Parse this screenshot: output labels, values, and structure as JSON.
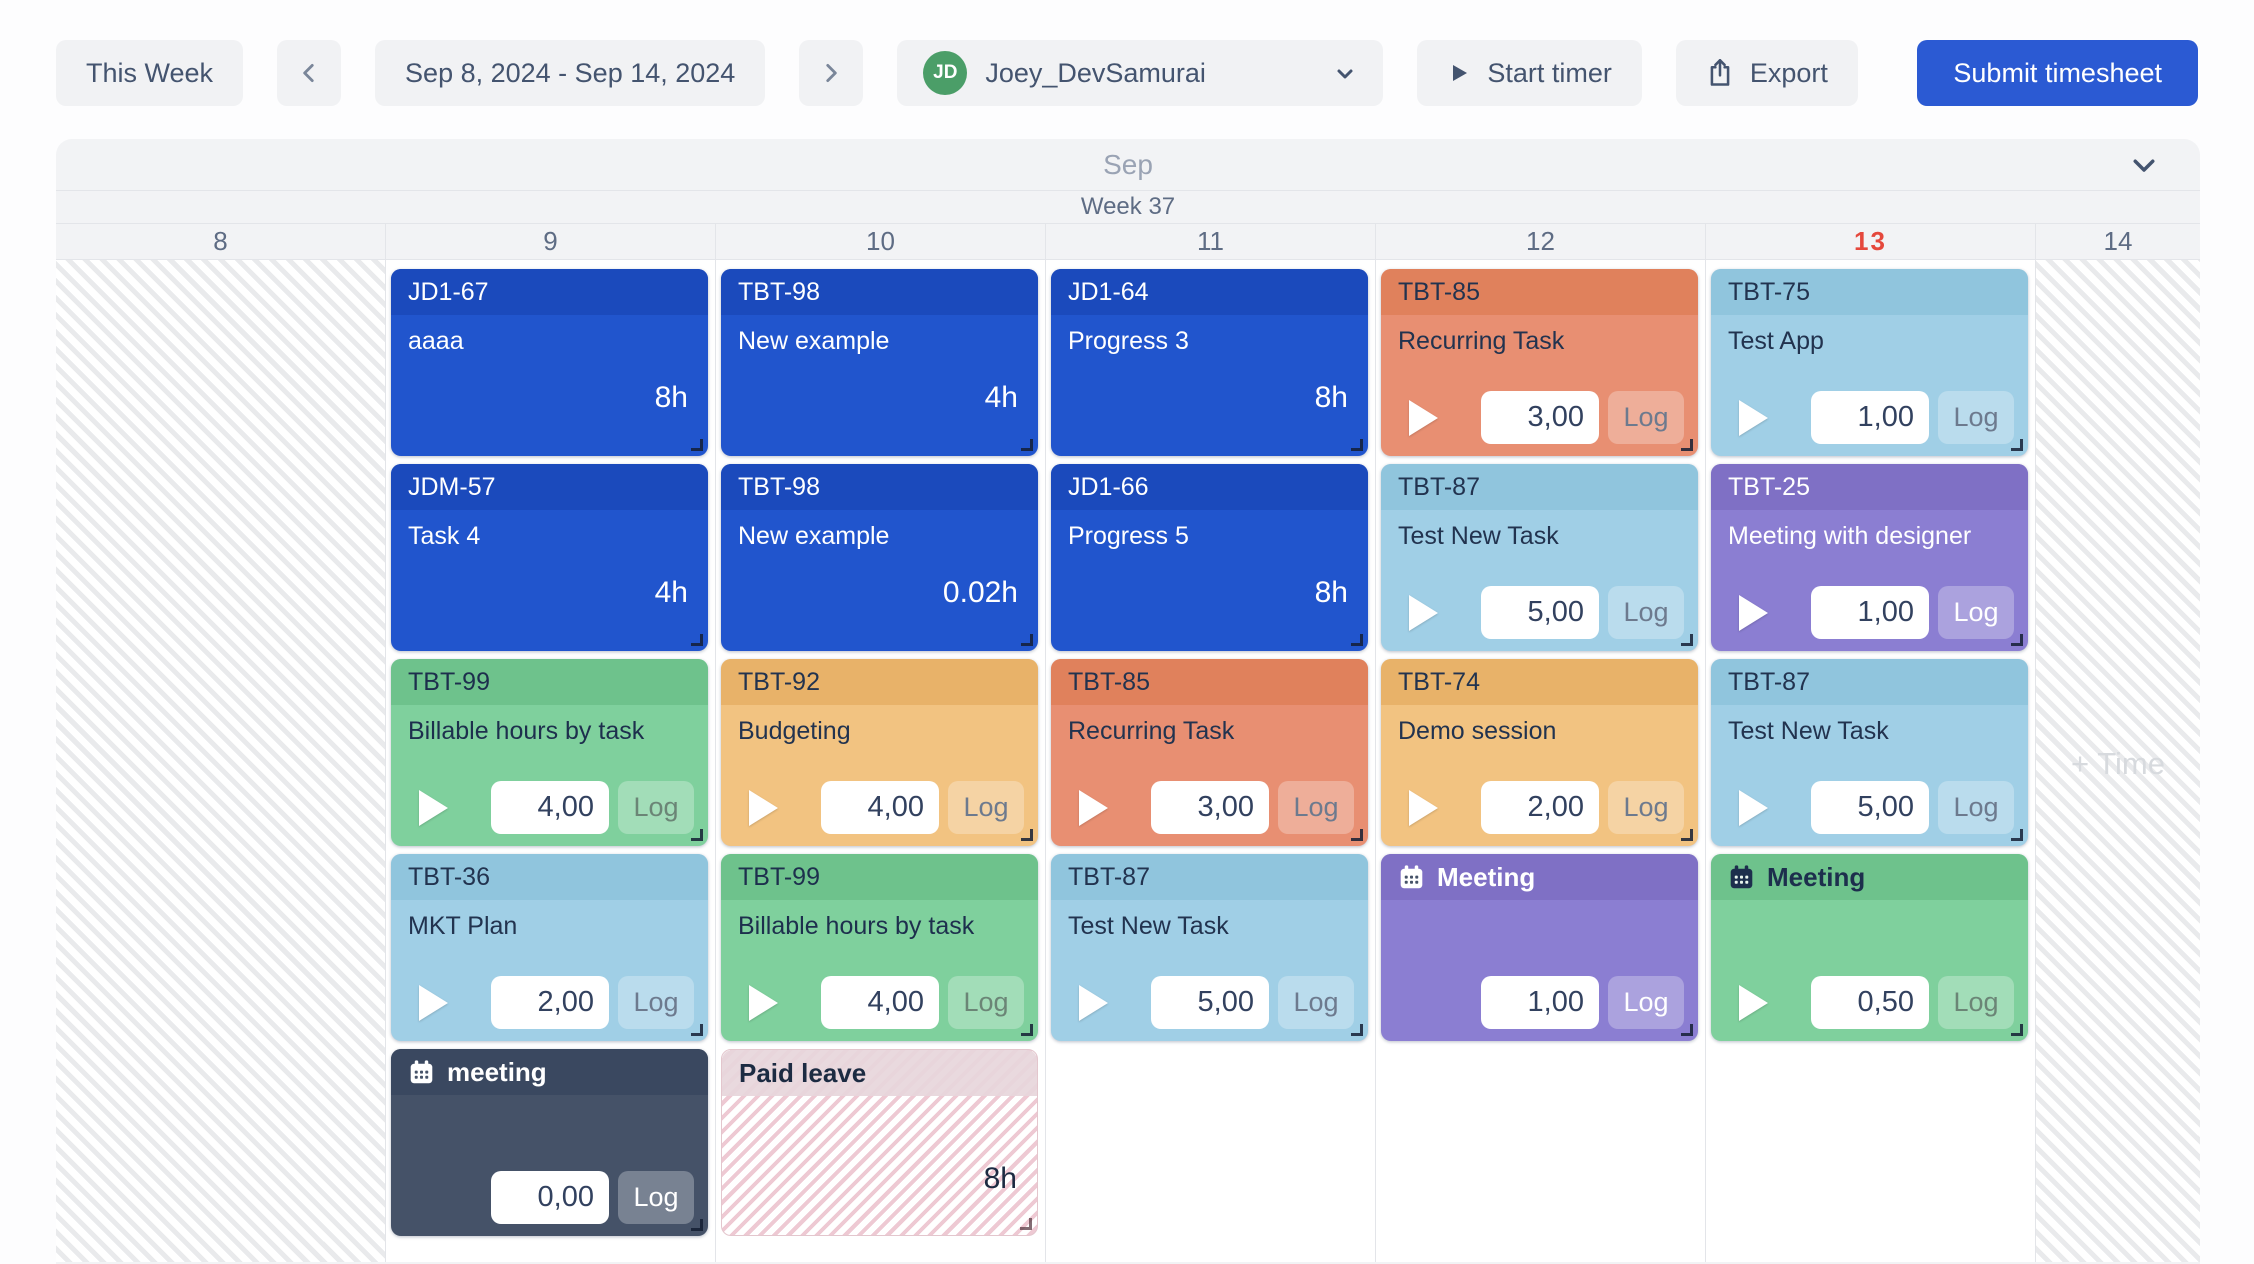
{
  "toolbar": {
    "this_week_label": "This Week",
    "date_range": "Sep 8, 2024 - Sep 14, 2024",
    "user": {
      "initials": "JD",
      "name": "Joey_DevSamurai",
      "avatar_color": "#4b9e68"
    },
    "start_timer_label": "Start timer",
    "export_label": "Export",
    "submit_label": "Submit timesheet",
    "submit_color": "#2b5ad3"
  },
  "calendar": {
    "month_label": "Sep",
    "week_label": "Week 37",
    "plus_time_label": "+ Time",
    "today_color": "#e5483c",
    "days": [
      {
        "num": "8",
        "weekend": true,
        "cards": []
      },
      {
        "num": "9",
        "cards": [
          {
            "key": "JD1-67",
            "title": "aaaa",
            "hours": "8h",
            "theme": "blue"
          },
          {
            "key": "JDM-57",
            "title": "Task 4",
            "hours": "4h",
            "theme": "blue"
          },
          {
            "key": "TBT-99",
            "title": "Billable hours by task",
            "theme": "green",
            "play": true,
            "value": "4,00",
            "log_label": "Log"
          },
          {
            "key": "TBT-36",
            "title": "MKT Plan",
            "theme": "lightblue",
            "play": true,
            "value": "2,00",
            "log_label": "Log"
          },
          {
            "event": true,
            "title": "meeting",
            "icon": "calendar-icon",
            "theme": "navy",
            "value": "0,00",
            "log_label": "Log"
          }
        ]
      },
      {
        "num": "10",
        "cards": [
          {
            "key": "TBT-98",
            "title": "New example",
            "hours": "4h",
            "theme": "blue"
          },
          {
            "key": "TBT-98",
            "title": "New example",
            "hours": "0.02h",
            "theme": "blue"
          },
          {
            "key": "TBT-92",
            "title": "Budgeting",
            "theme": "orange",
            "play": true,
            "value": "4,00",
            "log_label": "Log"
          },
          {
            "key": "TBT-99",
            "title": "Billable hours by task",
            "theme": "green",
            "play": true,
            "value": "4,00",
            "log_label": "Log"
          },
          {
            "leave": true,
            "title": "Paid leave",
            "hours": "8h",
            "theme": "leave"
          }
        ]
      },
      {
        "num": "11",
        "cards": [
          {
            "key": "JD1-64",
            "title": "Progress 3",
            "hours": "8h",
            "theme": "blue"
          },
          {
            "key": "JD1-66",
            "title": "Progress 5",
            "hours": "8h",
            "theme": "blue"
          },
          {
            "key": "TBT-85",
            "title": "Recurring Task",
            "theme": "salmon",
            "play": true,
            "value": "3,00",
            "log_label": "Log"
          },
          {
            "key": "TBT-87",
            "title": "Test New Task",
            "theme": "lightblue",
            "play": true,
            "value": "5,00",
            "log_label": "Log"
          }
        ]
      },
      {
        "num": "12",
        "cards": [
          {
            "key": "TBT-85",
            "title": "Recurring Task",
            "theme": "salmon",
            "play": true,
            "value": "3,00",
            "log_label": "Log"
          },
          {
            "key": "TBT-87",
            "title": "Test New Task",
            "theme": "lightblue",
            "play": true,
            "value": "5,00",
            "log_label": "Log"
          },
          {
            "key": "TBT-74",
            "title": "Demo session",
            "theme": "orange",
            "play": true,
            "value": "2,00",
            "log_label": "Log"
          },
          {
            "event": true,
            "title": "Meeting",
            "icon": "calendar-icon",
            "theme": "purple",
            "value": "1,00",
            "log_label": "Log"
          }
        ]
      },
      {
        "num": "13",
        "today": true,
        "cards": [
          {
            "key": "TBT-75",
            "title": "Test App",
            "theme": "lightblue",
            "play": true,
            "value": "1,00",
            "log_label": "Log"
          },
          {
            "key": "TBT-25",
            "title": "Meeting with designer",
            "theme": "purple",
            "play": true,
            "value": "1,00",
            "log_label": "Log"
          },
          {
            "key": "TBT-87",
            "title": "Test New Task",
            "theme": "lightblue",
            "play": true,
            "value": "5,00",
            "log_label": "Log"
          },
          {
            "event": true,
            "title": "Meeting",
            "icon": "calendar-icon",
            "theme": "green",
            "play": true,
            "value": "0,50",
            "log_label": "Log"
          }
        ]
      },
      {
        "num": "14",
        "weekend": true,
        "cards": []
      }
    ]
  },
  "themes": {
    "blue": {
      "bg": "#2155cd",
      "hd": "#1b4abc",
      "fg": "#ffffff",
      "log": "#ffffff"
    },
    "salmon": {
      "bg": "#e88f72",
      "hd": "#e0815c",
      "fg": "#22334f",
      "log": "#6d7a8e"
    },
    "lightblue": {
      "bg": "#a0cfe6",
      "hd": "#90c5dd",
      "fg": "#22334f",
      "log": "#6d7a8e"
    },
    "green": {
      "bg": "#7fd09d",
      "hd": "#6ec28c",
      "fg": "#1d2f4d",
      "log": "#6b8576"
    },
    "orange": {
      "bg": "#f2c381",
      "hd": "#e8b269",
      "fg": "#22334f",
      "log": "#6d7a8e"
    },
    "purple": {
      "bg": "#8b7ed2",
      "hd": "#7f70c5",
      "fg": "#ffffff",
      "log": "#ffffff"
    },
    "navy": {
      "bg": "#455268",
      "hd": "#3a4860",
      "fg": "#ffffff",
      "log": "#ffffff"
    },
    "leave": {
      "bg": "#ffffff",
      "hd": "#eadbde",
      "fg": "#1c2b42",
      "log": "#6d7a8e",
      "stripe": "#eec9d3"
    }
  },
  "icons": {
    "calendar-icon": "calendar glyph",
    "play-icon": "play triangle",
    "chevron-left-icon": "previous week",
    "chevron-right-icon": "next week",
    "chevron-down-icon": "collapse / open dropdown",
    "export-icon": "share box with up arrow"
  }
}
